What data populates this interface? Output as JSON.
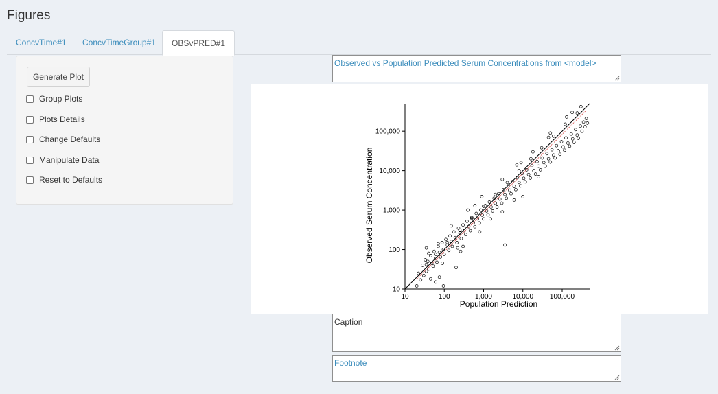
{
  "page_title": "Figures",
  "tabs": [
    {
      "label": "ConcvTime#1",
      "active": false
    },
    {
      "label": "ConcvTimeGroup#1",
      "active": false
    },
    {
      "label": "OBSvPRED#1",
      "active": true
    }
  ],
  "sidebar": {
    "generate_button": "Generate Plot",
    "options": [
      {
        "label": "Group Plots",
        "checked": false
      },
      {
        "label": "Plots Details",
        "checked": false
      },
      {
        "label": "Change Defaults",
        "checked": false
      },
      {
        "label": "Manipulate Data",
        "checked": false
      },
      {
        "label": "Reset to Defaults",
        "checked": false
      }
    ]
  },
  "title_field": {
    "value": "Observed vs Population Predicted Serum Concentrations from <model>",
    "color": "#3c8dbc"
  },
  "caption_field": {
    "value": "Caption",
    "color": "#333333"
  },
  "footnote_field": {
    "value": "Footnote",
    "color": "#3c8dbc"
  },
  "colors": {
    "accent": "#3c8dbc",
    "background": "#ecf0f5",
    "identity_line": "#000000",
    "loess_line": "#d9534f"
  },
  "chart_data": {
    "type": "scatter",
    "xlabel": "Population Prediction",
    "ylabel": "Observed Serum Concentration",
    "x_scale": "log",
    "y_scale": "log",
    "xlim": [
      10,
      500000
    ],
    "ylim": [
      10,
      500000
    ],
    "x_ticks": [
      10,
      100,
      1000,
      10000,
      100000
    ],
    "x_tick_labels": [
      "10",
      "100",
      "1,000",
      "10,000",
      "100,000"
    ],
    "y_ticks": [
      10,
      100,
      1000,
      10000,
      100000
    ],
    "y_tick_labels": [
      "10",
      "100",
      "1,000",
      "10,000",
      "100,000"
    ],
    "marker": "open-circle",
    "reference_lines": [
      "identity y = x",
      "loess trend"
    ],
    "grid": false,
    "points": [
      [
        22,
        25
      ],
      [
        25,
        17
      ],
      [
        28,
        40
      ],
      [
        30,
        22
      ],
      [
        33,
        55
      ],
      [
        35,
        28
      ],
      [
        38,
        50
      ],
      [
        40,
        32
      ],
      [
        45,
        70
      ],
      [
        48,
        45
      ],
      [
        52,
        38
      ],
      [
        55,
        90
      ],
      [
        60,
        60
      ],
      [
        65,
        48
      ],
      [
        70,
        120
      ],
      [
        75,
        85
      ],
      [
        80,
        65
      ],
      [
        88,
        150
      ],
      [
        95,
        100
      ],
      [
        100,
        75
      ],
      [
        110,
        180
      ],
      [
        120,
        130
      ],
      [
        130,
        95
      ],
      [
        140,
        220
      ],
      [
        150,
        160
      ],
      [
        160,
        120
      ],
      [
        175,
        280
      ],
      [
        190,
        200
      ],
      [
        210,
        150
      ],
      [
        230,
        350
      ],
      [
        250,
        260
      ],
      [
        270,
        190
      ],
      [
        300,
        420
      ],
      [
        320,
        300
      ],
      [
        350,
        240
      ],
      [
        380,
        520
      ],
      [
        420,
        380
      ],
      [
        460,
        300
      ],
      [
        500,
        650
      ],
      [
        550,
        480
      ],
      [
        600,
        380
      ],
      [
        650,
        820
      ],
      [
        700,
        600
      ],
      [
        780,
        470
      ],
      [
        850,
        1000
      ],
      [
        920,
        750
      ],
      [
        1000,
        600
      ],
      [
        1100,
        1300
      ],
      [
        1200,
        950
      ],
      [
        1300,
        760
      ],
      [
        1400,
        1600
      ],
      [
        1550,
        1200
      ],
      [
        1700,
        950
      ],
      [
        1850,
        2000
      ],
      [
        2000,
        1500
      ],
      [
        2200,
        1200
      ],
      [
        2400,
        2600
      ],
      [
        2600,
        1900
      ],
      [
        2900,
        1500
      ],
      [
        3200,
        3300
      ],
      [
        3500,
        2500
      ],
      [
        3800,
        2000
      ],
      [
        4200,
        4100
      ],
      [
        4600,
        3200
      ],
      [
        5000,
        2600
      ],
      [
        5500,
        5300
      ],
      [
        6000,
        4000
      ],
      [
        6600,
        3300
      ],
      [
        7200,
        6600
      ],
      [
        8000,
        5000
      ],
      [
        8800,
        4100
      ],
      [
        9600,
        8500
      ],
      [
        10500,
        6400
      ],
      [
        11500,
        5200
      ],
      [
        12500,
        10500
      ],
      [
        14000,
        8000
      ],
      [
        15500,
        6500
      ],
      [
        17000,
        13500
      ],
      [
        19000,
        10000
      ],
      [
        21000,
        8200
      ],
      [
        23000,
        17000
      ],
      [
        25000,
        13000
      ],
      [
        28000,
        10500
      ],
      [
        31000,
        21000
      ],
      [
        34000,
        16000
      ],
      [
        37000,
        13000
      ],
      [
        41000,
        27000
      ],
      [
        45000,
        20000
      ],
      [
        50000,
        16500
      ],
      [
        55000,
        34000
      ],
      [
        60000,
        25000
      ],
      [
        66000,
        21000
      ],
      [
        72000,
        43000
      ],
      [
        80000,
        32000
      ],
      [
        88000,
        26000
      ],
      [
        96000,
        54000
      ],
      [
        105000,
        40000
      ],
      [
        115000,
        33000
      ],
      [
        125000,
        68000
      ],
      [
        140000,
        50000
      ],
      [
        155000,
        42000
      ],
      [
        170000,
        85000
      ],
      [
        185000,
        64000
      ],
      [
        200000,
        52000
      ],
      [
        220000,
        110000
      ],
      [
        240000,
        80000
      ],
      [
        260000,
        66000
      ],
      [
        290000,
        135000
      ],
      [
        320000,
        100000
      ],
      [
        350000,
        170000
      ],
      [
        380000,
        130000
      ],
      [
        410000,
        210000
      ],
      [
        440000,
        160000
      ],
      [
        30000,
        38000
      ],
      [
        60000,
        75000
      ],
      [
        120000,
        150000
      ],
      [
        240000,
        290000
      ],
      [
        8000,
        10000
      ],
      [
        16000,
        20000
      ],
      [
        4000,
        5000
      ],
      [
        2000,
        2500
      ],
      [
        1000,
        1250
      ],
      [
        500,
        620
      ],
      [
        250,
        310
      ],
      [
        120,
        150
      ],
      [
        60,
        75
      ],
      [
        35,
        42
      ],
      [
        75,
        20
      ],
      [
        300,
        120
      ],
      [
        1500,
        600
      ],
      [
        45,
        18
      ],
      [
        400,
        1000
      ],
      [
        150,
        400
      ],
      [
        200,
        35
      ],
      [
        800,
        280
      ],
      [
        3000,
        900
      ],
      [
        6000,
        1800
      ],
      [
        25000,
        7000
      ],
      [
        9000,
        16000
      ],
      [
        50000,
        90000
      ],
      [
        130000,
        230000
      ],
      [
        60,
        15
      ],
      [
        20,
        12
      ],
      [
        3500,
        130
      ],
      [
        10000,
        2200
      ],
      [
        40,
        80
      ],
      [
        70,
        140
      ],
      [
        260,
        90
      ],
      [
        95,
        12
      ],
      [
        35,
        110
      ],
      [
        18000,
        30000
      ],
      [
        3000,
        6000
      ],
      [
        900,
        2200
      ],
      [
        600,
        1300
      ],
      [
        7000,
        14000
      ],
      [
        45000,
        70000
      ],
      [
        180000,
        300000
      ],
      [
        300000,
        420000
      ],
      [
        90,
        45
      ],
      [
        220,
        110
      ]
    ]
  }
}
